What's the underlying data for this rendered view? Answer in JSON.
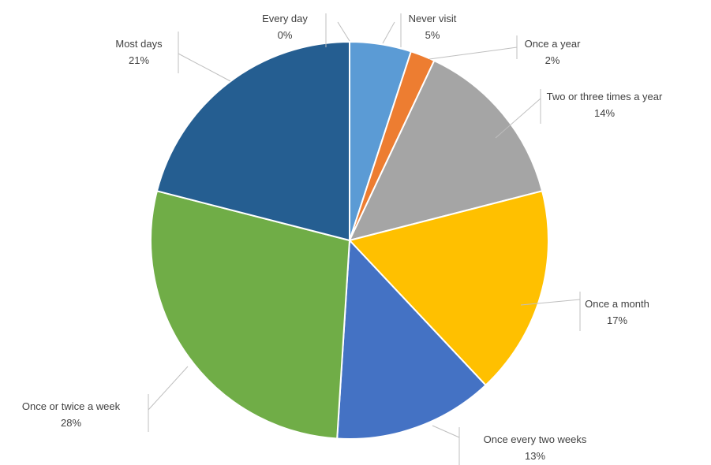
{
  "chart_data": {
    "type": "pie",
    "title": "",
    "slices": [
      {
        "label": "Every day",
        "value": 0,
        "value_label": "0%",
        "color": "#ffffff"
      },
      {
        "label": "Never visit",
        "value": 5,
        "value_label": "5%",
        "color": "#5b9bd5"
      },
      {
        "label": "Once a year",
        "value": 2,
        "value_label": "2%",
        "color": "#ed7d31"
      },
      {
        "label": "Two or three times a year",
        "value": 14,
        "value_label": "14%",
        "color": "#a5a5a5"
      },
      {
        "label": "Once a month",
        "value": 17,
        "value_label": "17%",
        "color": "#ffc000"
      },
      {
        "label": "Once every two weeks",
        "value": 13,
        "value_label": "13%",
        "color": "#4472c4"
      },
      {
        "label": "Once or twice a week",
        "value": 28,
        "value_label": "28%",
        "color": "#70ad47"
      },
      {
        "label": "Most days",
        "value": 21,
        "value_label": "21%",
        "color": "#255e91"
      }
    ],
    "legend": "none",
    "data_labels": "outside with leader lines"
  }
}
